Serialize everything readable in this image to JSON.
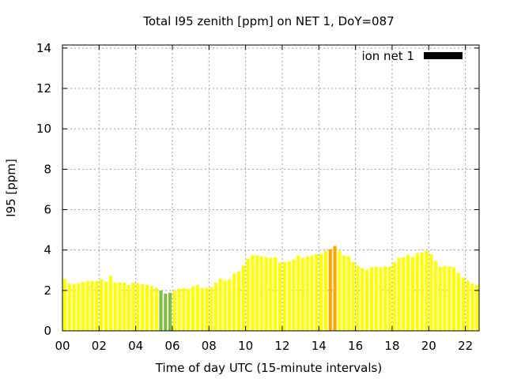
{
  "chart_data": {
    "type": "bar",
    "title": "Total I95 zenith [ppm] on NET 1, DoY=087",
    "xlabel": "Time of day UTC (15-minute intervals)",
    "ylabel": "I95 [ppm]",
    "xlim": [
      0,
      22.75
    ],
    "ylim": [
      0,
      14.15
    ],
    "grid": true,
    "legend": {
      "label": "ion net 1",
      "placement": "top-right",
      "color": "#000000"
    },
    "xticks": [
      {
        "v": 0,
        "label": "00"
      },
      {
        "v": 2,
        "label": "02"
      },
      {
        "v": 4,
        "label": "04"
      },
      {
        "v": 6,
        "label": "06"
      },
      {
        "v": 8,
        "label": "08"
      },
      {
        "v": 10,
        "label": "10"
      },
      {
        "v": 12,
        "label": "12"
      },
      {
        "v": 14,
        "label": "14"
      },
      {
        "v": 16,
        "label": "16"
      },
      {
        "v": 18,
        "label": "18"
      },
      {
        "v": 20,
        "label": "20"
      },
      {
        "v": 22,
        "label": "22"
      }
    ],
    "yticks": [
      {
        "v": 0,
        "label": "0"
      },
      {
        "v": 2,
        "label": "2"
      },
      {
        "v": 4,
        "label": "4"
      },
      {
        "v": 6,
        "label": "6"
      },
      {
        "v": 8,
        "label": "8"
      },
      {
        "v": 10,
        "label": "10"
      },
      {
        "v": 12,
        "label": "12"
      },
      {
        "v": 14,
        "label": "14"
      }
    ],
    "interval_hours": 0.25,
    "colors": {
      "yellow": "#ffff00",
      "green": "#80c040",
      "orange": "#ffa500"
    },
    "values": [
      2.56,
      2.35,
      2.31,
      2.35,
      2.43,
      2.47,
      2.47,
      2.47,
      2.55,
      2.43,
      2.71,
      2.39,
      2.39,
      2.39,
      2.27,
      2.39,
      2.35,
      2.31,
      2.27,
      2.2,
      2.12,
      2.0,
      1.84,
      1.88,
      2.0,
      2.09,
      2.12,
      2.08,
      2.2,
      2.27,
      2.12,
      2.12,
      2.16,
      2.39,
      2.59,
      2.51,
      2.55,
      2.82,
      2.94,
      3.22,
      3.57,
      3.76,
      3.73,
      3.69,
      3.65,
      3.61,
      3.65,
      3.37,
      3.41,
      3.45,
      3.53,
      3.73,
      3.61,
      3.69,
      3.73,
      3.8,
      3.8,
      3.96,
      4.04,
      4.2,
      3.96,
      3.73,
      3.69,
      3.41,
      3.22,
      3.1,
      3.02,
      3.14,
      3.18,
      3.14,
      3.18,
      3.18,
      3.41,
      3.61,
      3.65,
      3.76,
      3.65,
      3.84,
      3.88,
      3.96,
      3.8,
      3.45,
      3.18,
      3.22,
      3.18,
      3.14,
      2.86,
      2.63,
      2.47,
      2.35,
      2.27,
      2.2
    ],
    "bar_colors": {
      "green": [
        21,
        22,
        23
      ],
      "orange": [
        58,
        59
      ]
    }
  }
}
